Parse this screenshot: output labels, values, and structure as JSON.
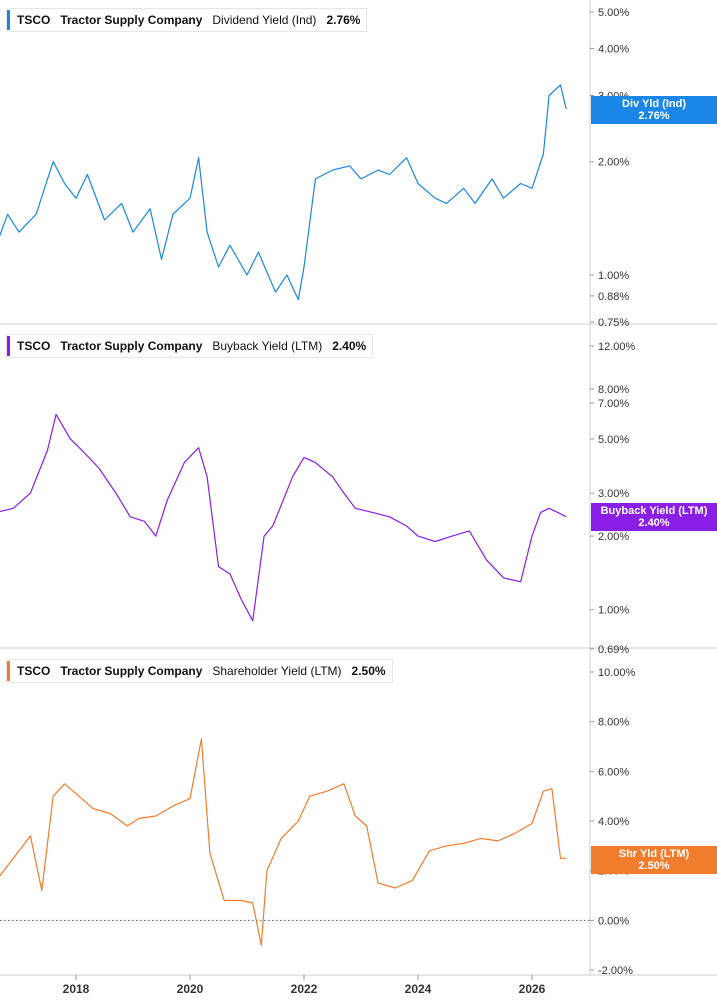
{
  "panels": [
    {
      "ticker": "TSCO",
      "company": "Tractor Supply Company",
      "metric": "Dividend Yield (Ind)",
      "value_label": "2.76%",
      "badge": [
        "Div Yld (Ind)",
        "2.76%"
      ],
      "color": "#1a86e8"
    },
    {
      "ticker": "TSCO",
      "company": "Tractor Supply Company",
      "metric": "Buyback Yield (LTM)",
      "value_label": "2.40%",
      "badge": [
        "Buyback Yield (LTM)",
        "2.40%"
      ],
      "color": "#8a1ee6"
    },
    {
      "ticker": "TSCO",
      "company": "Tractor Supply Company",
      "metric": "Shareholder Yield (LTM)",
      "value_label": "2.50%",
      "badge": [
        "Shr Yld (LTM)",
        "2.50%"
      ],
      "color": "#f07c2c"
    }
  ],
  "chart_data": [
    {
      "type": "line",
      "scale": "log",
      "series": [
        {
          "name": "Dividend Yield (Ind)",
          "x": [
            2016.6,
            2016.8,
            2017.0,
            2017.3,
            2017.6,
            2017.8,
            2018.0,
            2018.2,
            2018.5,
            2018.8,
            2019.0,
            2019.3,
            2019.5,
            2019.7,
            2020.0,
            2020.15,
            2020.3,
            2020.5,
            2020.7,
            2021.0,
            2021.2,
            2021.5,
            2021.7,
            2021.9,
            2022.0,
            2022.2,
            2022.5,
            2022.8,
            2023.0,
            2023.3,
            2023.5,
            2023.8,
            2024.0,
            2024.3,
            2024.5,
            2024.8,
            2025.0,
            2025.3,
            2025.5,
            2025.8,
            2026.0,
            2026.2,
            2026.3,
            2026.5,
            2026.6
          ],
          "y": [
            1.2,
            1.45,
            1.3,
            1.45,
            2.0,
            1.75,
            1.6,
            1.85,
            1.4,
            1.55,
            1.3,
            1.5,
            1.1,
            1.45,
            1.6,
            2.05,
            1.3,
            1.05,
            1.2,
            1.0,
            1.15,
            0.9,
            1.0,
            0.86,
            1.05,
            1.8,
            1.9,
            1.95,
            1.8,
            1.9,
            1.85,
            2.05,
            1.75,
            1.6,
            1.55,
            1.7,
            1.55,
            1.8,
            1.6,
            1.75,
            1.7,
            2.1,
            3.0,
            3.2,
            2.76
          ]
        }
      ],
      "yticks": [
        "5.00%",
        "4.00%",
        "3.00%",
        "2.00%",
        "1.00%",
        "0.88%",
        "0.75%"
      ]
    },
    {
      "type": "line",
      "scale": "log",
      "series": [
        {
          "name": "Buyback Yield (LTM)",
          "x": [
            2016.6,
            2016.9,
            2017.2,
            2017.5,
            2017.65,
            2017.9,
            2018.1,
            2018.4,
            2018.7,
            2018.95,
            2019.2,
            2019.4,
            2019.6,
            2019.9,
            2020.15,
            2020.3,
            2020.5,
            2020.7,
            2020.9,
            2021.1,
            2021.3,
            2021.45,
            2021.55,
            2021.8,
            2022.0,
            2022.2,
            2022.5,
            2022.7,
            2022.9,
            2023.2,
            2023.5,
            2023.8,
            2024.0,
            2024.3,
            2024.6,
            2024.9,
            2025.2,
            2025.5,
            2025.8,
            2026.0,
            2026.15,
            2026.3,
            2026.45,
            2026.6
          ],
          "y": [
            2.5,
            2.6,
            3.0,
            4.5,
            6.3,
            5.0,
            4.5,
            3.8,
            3.0,
            2.4,
            2.3,
            2.0,
            2.8,
            4.0,
            4.6,
            3.5,
            1.5,
            1.4,
            1.1,
            0.9,
            2.0,
            2.2,
            2.5,
            3.5,
            4.2,
            4.0,
            3.5,
            3.0,
            2.6,
            2.5,
            2.4,
            2.2,
            2.0,
            1.9,
            2.0,
            2.1,
            1.6,
            1.35,
            1.3,
            2.0,
            2.5,
            2.6,
            2.5,
            2.4
          ]
        }
      ],
      "yticks": [
        "12.00%",
        "8.00%",
        "7.00%",
        "5.00%",
        "3.00%",
        "2.00%",
        "1.00%",
        "0.69%"
      ]
    },
    {
      "type": "line",
      "scale": "linear",
      "series": [
        {
          "name": "Shareholder Yield (LTM)",
          "x": [
            2016.6,
            2016.9,
            2017.2,
            2017.4,
            2017.6,
            2017.8,
            2018.0,
            2018.3,
            2018.6,
            2018.9,
            2019.1,
            2019.4,
            2019.7,
            2020.0,
            2020.2,
            2020.35,
            2020.6,
            2020.9,
            2021.1,
            2021.25,
            2021.35,
            2021.6,
            2021.9,
            2022.1,
            2022.4,
            2022.7,
            2022.9,
            2023.1,
            2023.3,
            2023.6,
            2023.9,
            2024.2,
            2024.5,
            2024.8,
            2025.1,
            2025.4,
            2025.7,
            2026.0,
            2026.2,
            2026.35,
            2026.5,
            2026.6
          ],
          "y": [
            1.6,
            2.5,
            3.4,
            1.2,
            5.0,
            5.5,
            5.1,
            4.5,
            4.3,
            3.8,
            4.1,
            4.2,
            4.6,
            4.9,
            7.3,
            2.7,
            0.8,
            0.8,
            0.7,
            -1.0,
            2.0,
            3.3,
            4.0,
            5.0,
            5.2,
            5.5,
            4.2,
            3.8,
            1.5,
            1.3,
            1.6,
            2.8,
            3.0,
            3.1,
            3.3,
            3.2,
            3.5,
            3.9,
            5.2,
            5.3,
            2.5,
            2.5
          ]
        }
      ],
      "yticks": [
        "10.00%",
        "8.00%",
        "6.00%",
        "4.00%",
        "2.00%",
        "0.00%",
        "-2.00%"
      ]
    }
  ],
  "xaxis_labels": [
    "2018",
    "2020",
    "2022",
    "2024",
    "2026"
  ]
}
